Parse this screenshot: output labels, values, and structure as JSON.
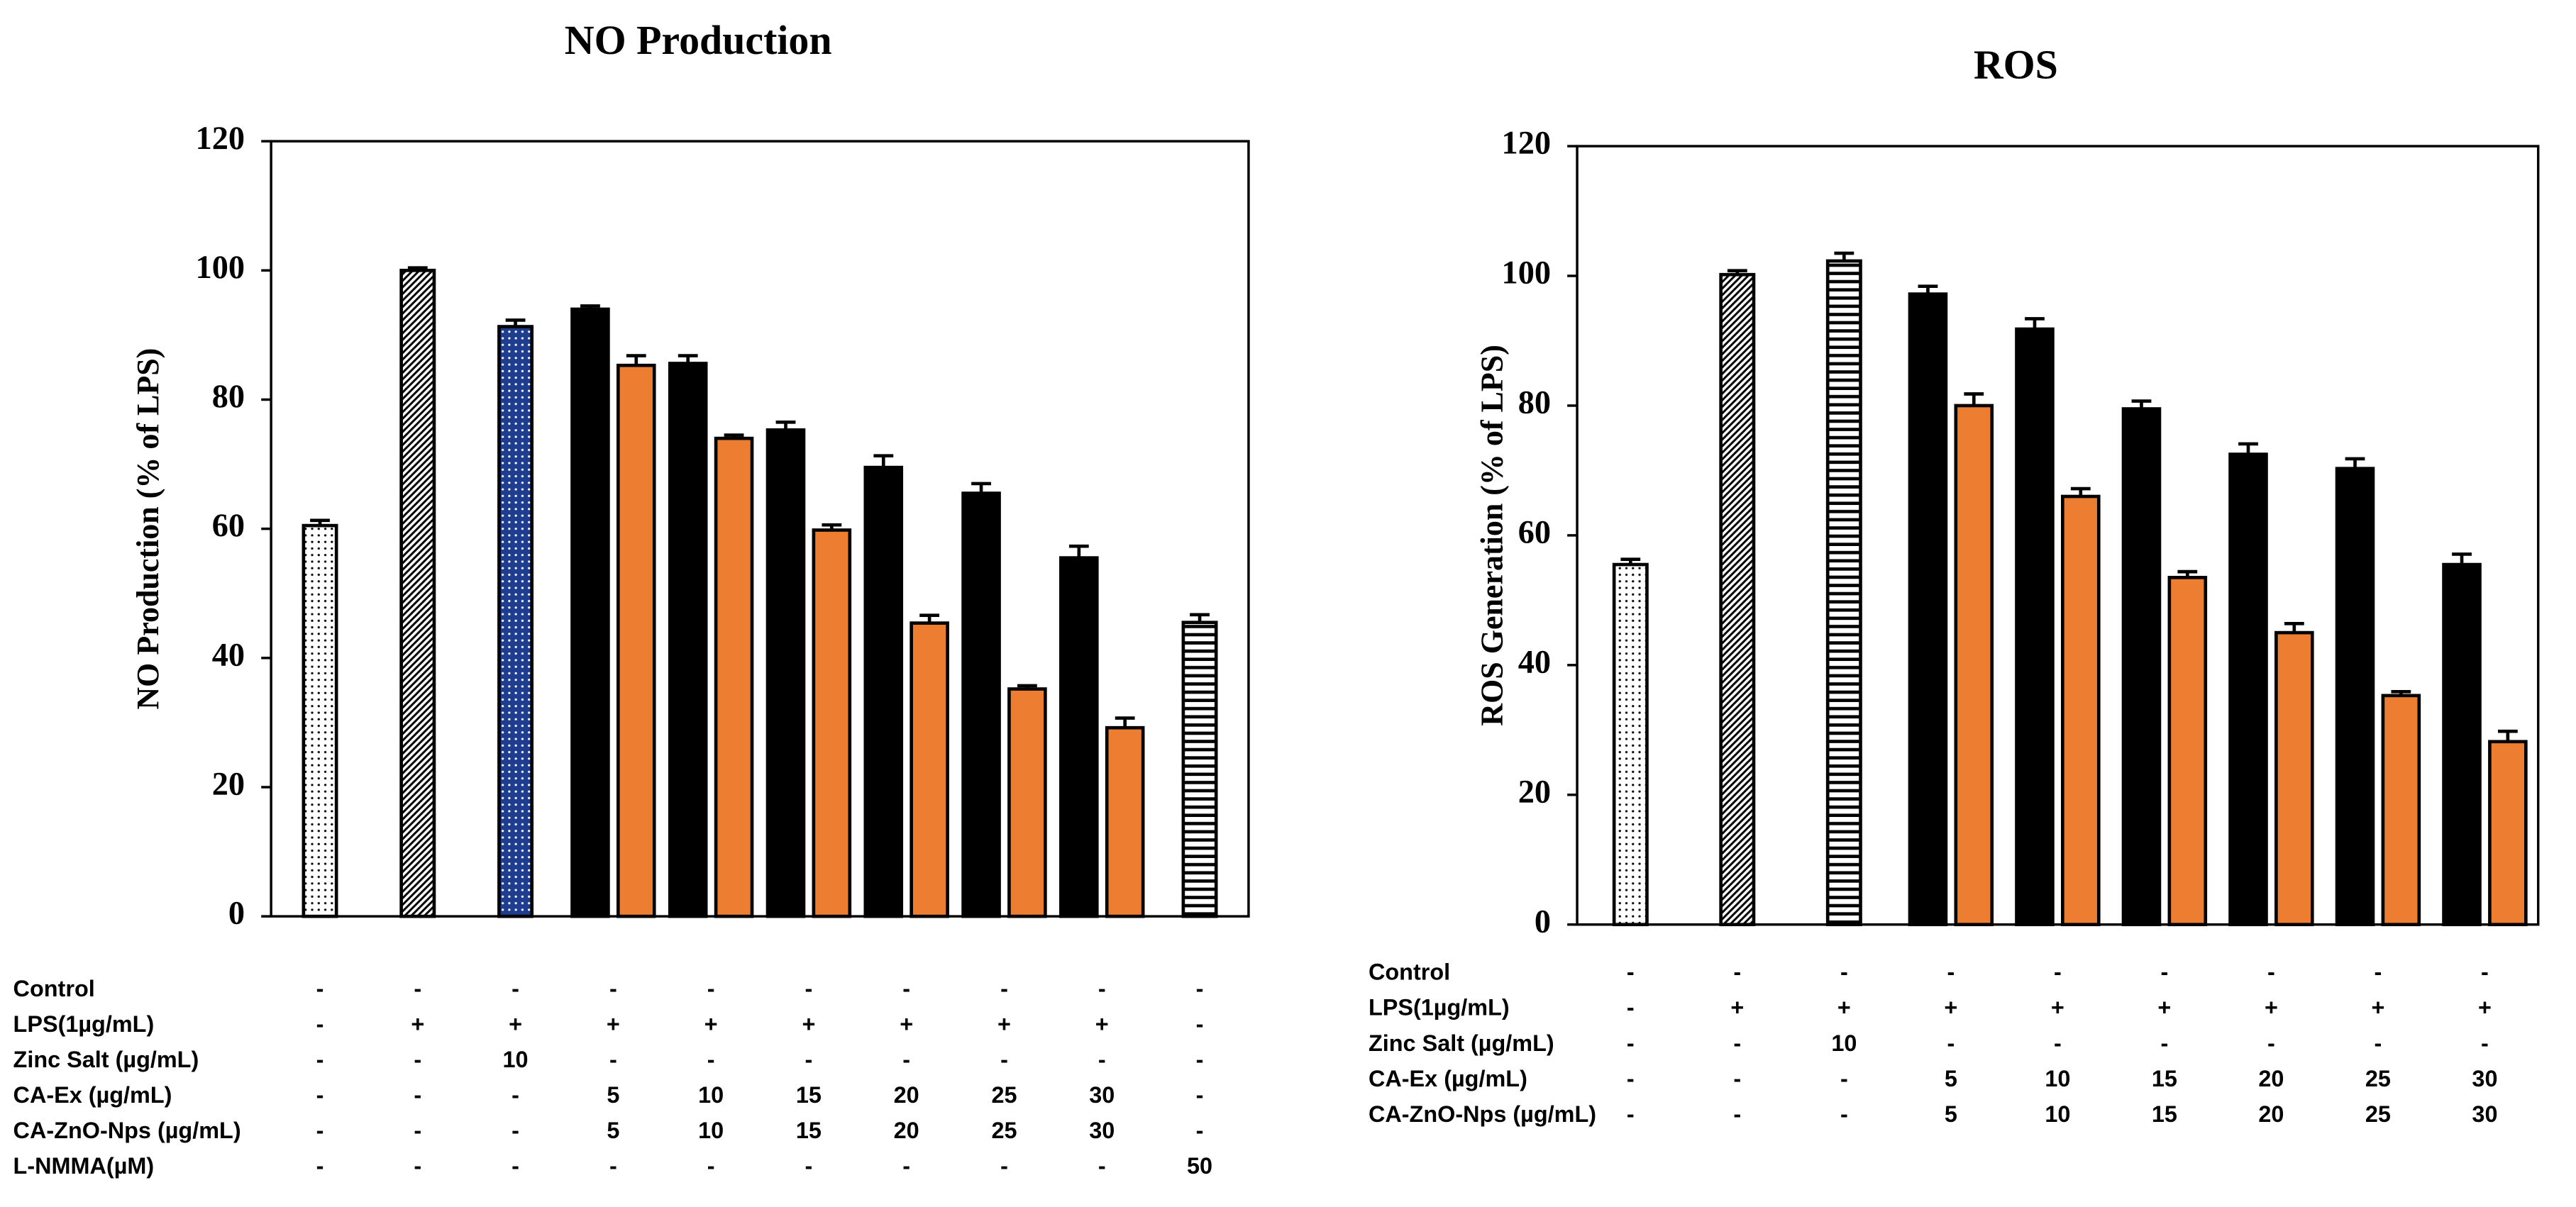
{
  "chart_data": [
    {
      "type": "bar",
      "title": "NO Production",
      "y_label": "NO Production (% of LPS)",
      "ylim": [
        0,
        120
      ],
      "yticks": [
        0,
        20,
        40,
        60,
        80,
        100,
        120
      ],
      "grid": false,
      "series": [
        {
          "values": [
            60.5,
            100,
            91.3,
            94,
            85.6,
            75.3,
            69.5,
            65.5,
            55.5,
            45.5
          ],
          "errors": [
            0.8,
            0.4,
            1,
            0.5,
            1.2,
            1.2,
            1.8,
            1.5,
            1.8,
            1.2
          ],
          "colors": [
            "#ffffff",
            "#ffffff",
            "#1f3d8f",
            "#000000",
            "#000000",
            "#000000",
            "#000000",
            "#000000",
            "#000000",
            "#ffffff"
          ],
          "patterns": [
            "dots",
            "diagonal",
            "dots",
            "solid",
            "solid",
            "solid",
            "solid",
            "solid",
            "solid",
            "horizontal"
          ]
        },
        {
          "values": [
            null,
            null,
            null,
            85.3,
            74,
            59.8,
            45.4,
            35.2,
            29.2,
            null
          ],
          "errors": [
            null,
            null,
            null,
            1.5,
            0.5,
            0.8,
            1.2,
            0.5,
            1.5,
            null
          ],
          "color": "#ed7d31"
        }
      ],
      "table": {
        "rows": [
          {
            "label": "Control",
            "cells": [
              "-",
              "-",
              "-",
              "-",
              "-",
              "-",
              "-",
              "-",
              "-",
              "-"
            ]
          },
          {
            "label": "LPS(1µg/mL)",
            "cells": [
              "-",
              "+",
              "+",
              "+",
              "+",
              "+",
              "+",
              "+",
              "+",
              "-"
            ]
          },
          {
            "label": "Zinc Salt (µg/mL)",
            "cells": [
              "-",
              "-",
              10,
              "-",
              "-",
              "-",
              "-",
              "-",
              "-",
              "-"
            ]
          },
          {
            "label": "CA-Ex (µg/mL)",
            "cells": [
              "-",
              "-",
              "-",
              5,
              10,
              15,
              20,
              25,
              30,
              "-"
            ]
          },
          {
            "label": "CA-ZnO-Nps (µg/mL)",
            "cells": [
              "-",
              "-",
              "-",
              5,
              10,
              15,
              20,
              25,
              30,
              "-"
            ]
          },
          {
            "label": "L-NMMA(µM)",
            "cells": [
              "-",
              "-",
              "-",
              "-",
              "-",
              "-",
              "-",
              "-",
              "-",
              50
            ]
          }
        ]
      }
    },
    {
      "type": "bar",
      "title": "ROS",
      "y_label": "ROS Generation (% of LPS)",
      "ylim": [
        0,
        120
      ],
      "yticks": [
        0,
        20,
        40,
        60,
        80,
        100,
        120
      ],
      "grid": false,
      "series": [
        {
          "values": [
            55.5,
            100.2,
            102.3,
            97.2,
            91.8,
            79.5,
            72.5,
            70.3,
            55.5
          ],
          "errors": [
            0.8,
            0.6,
            1.2,
            1.2,
            1.6,
            1.2,
            1.6,
            1.5,
            1.6
          ],
          "colors": [
            "#ffffff",
            "#ffffff",
            "#ffffff",
            "#000000",
            "#000000",
            "#000000",
            "#000000",
            "#000000",
            "#000000"
          ],
          "patterns": [
            "dots",
            "diagonal",
            "horizontal",
            "solid",
            "solid",
            "solid",
            "solid",
            "solid",
            "solid"
          ]
        },
        {
          "values": [
            null,
            null,
            null,
            80,
            66,
            53.5,
            45,
            35.3,
            28.2
          ],
          "errors": [
            null,
            null,
            null,
            1.8,
            1.2,
            0.9,
            1.4,
            0.6,
            1.6
          ],
          "color": "#ed7d31"
        }
      ],
      "table": {
        "rows": [
          {
            "label": "Control",
            "cells": [
              "-",
              "-",
              "-",
              "-",
              "-",
              "-",
              "-",
              "-",
              "-"
            ]
          },
          {
            "label": "LPS(1µg/mL)",
            "cells": [
              "-",
              "+",
              "+",
              "+",
              "+",
              "+",
              "+",
              "+",
              "+"
            ]
          },
          {
            "label": "Zinc Salt (µg/mL)",
            "cells": [
              "-",
              "-",
              10,
              "-",
              "-",
              "-",
              "-",
              "-",
              "-"
            ]
          },
          {
            "label": "CA-Ex (µg/mL)",
            "cells": [
              "-",
              "-",
              "-",
              5,
              10,
              15,
              20,
              25,
              30
            ]
          },
          {
            "label": "CA-ZnO-Nps (µg/mL)",
            "cells": [
              "-",
              "-",
              "-",
              5,
              10,
              15,
              20,
              25,
              30
            ]
          }
        ]
      }
    }
  ]
}
